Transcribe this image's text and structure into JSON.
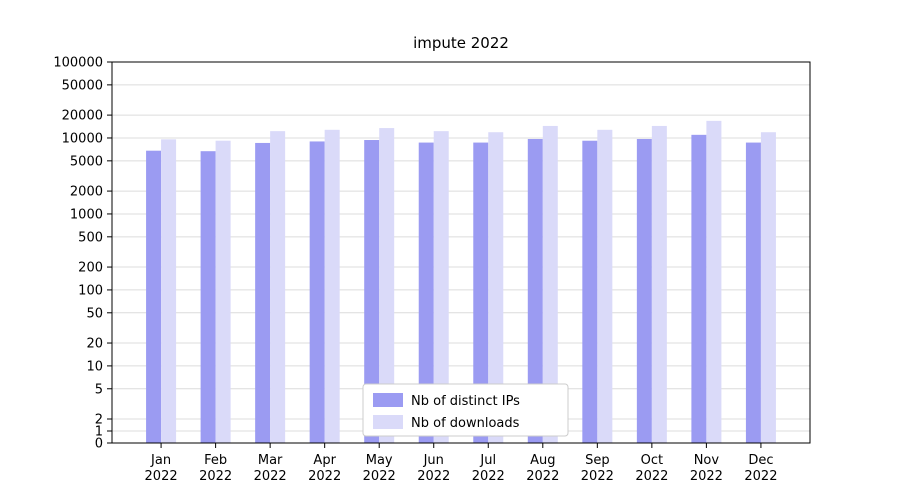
{
  "chart_data": {
    "type": "bar",
    "title": "impute 2022",
    "categories": [
      "Jan",
      "Feb",
      "Mar",
      "Apr",
      "May",
      "Jun",
      "Jul",
      "Aug",
      "Sep",
      "Oct",
      "Nov",
      "Dec"
    ],
    "year": "2022",
    "series": [
      {
        "name": "Nb of distinct IPs",
        "color": "#9b9bf2",
        "values": [
          6800,
          6700,
          8600,
          9000,
          9400,
          8700,
          8700,
          9700,
          9200,
          9700,
          11000,
          8700
        ]
      },
      {
        "name": "Nb of downloads",
        "color": "#dadaf9",
        "values": [
          9600,
          9200,
          12300,
          12800,
          13500,
          12300,
          11900,
          14400,
          12800,
          14400,
          16800,
          11900
        ]
      }
    ],
    "yscale": "symlog",
    "yticks": [
      0,
      1,
      2,
      5,
      10,
      20,
      50,
      100,
      200,
      500,
      1000,
      2000,
      5000,
      10000,
      20000,
      50000,
      100000
    ],
    "ylim": [
      0,
      100000
    ],
    "grid": true,
    "legend_position": "lower center",
    "colors": {
      "grid": "#dcdcdc",
      "axis": "#000000",
      "legend_border": "#cccccc",
      "background": "#ffffff"
    }
  }
}
